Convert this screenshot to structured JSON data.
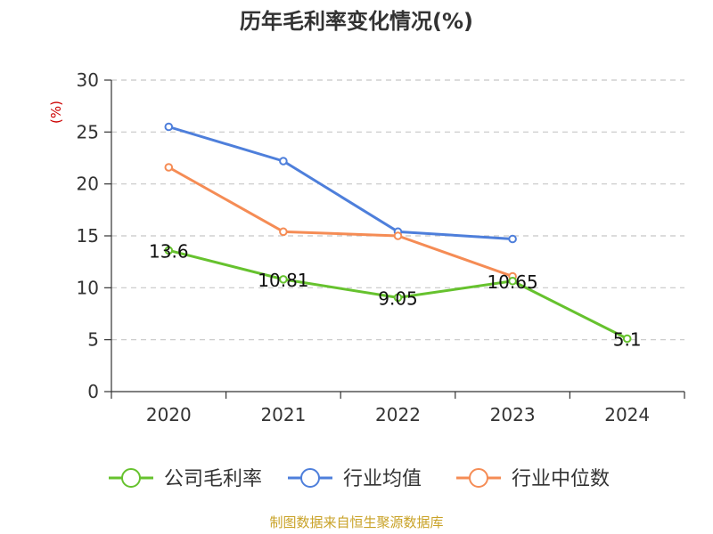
{
  "chart_data": {
    "type": "line",
    "title": "历年毛利率变化情况(%)",
    "ylabel": "(%)",
    "xlabel": "",
    "categories": [
      "2020",
      "2021",
      "2022",
      "2023",
      "2024"
    ],
    "ylim": [
      0,
      30
    ],
    "yticks": [
      "0",
      "5",
      "10",
      "15",
      "20",
      "25",
      "30"
    ],
    "grid": true,
    "legend_position": "bottom",
    "series": [
      {
        "name": "公司毛利率",
        "color": "#66c22e",
        "values": [
          13.6,
          10.81,
          9.05,
          10.65,
          5.1
        ],
        "labels": [
          "13.6",
          "10.81",
          "9.05",
          "10.65",
          "5.1"
        ]
      },
      {
        "name": "行业均值",
        "color": "#4e7fdb",
        "values": [
          25.5,
          22.2,
          15.4,
          14.7,
          null
        ],
        "labels": []
      },
      {
        "name": "行业中位数",
        "color": "#f58c55",
        "values": [
          21.6,
          15.4,
          15.0,
          11.1,
          null
        ],
        "labels": []
      }
    ]
  },
  "source": "制图数据来自恒生聚源数据库"
}
